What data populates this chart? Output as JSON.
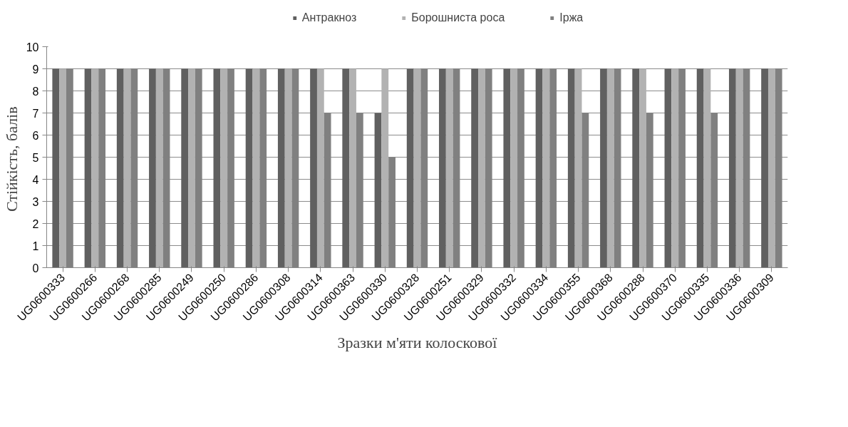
{
  "chart_data": {
    "type": "bar",
    "xlabel": "Зразки м'яти колоскової",
    "ylabel": "Стійкість,  балів",
    "categories": [
      "UG0600333",
      "UG0600266",
      "UG0600268",
      "UG0600285",
      "UG0600249",
      "UG0600250",
      "UG0600286",
      "UG0600308",
      "UG0600314",
      "UG0600363",
      "UG0600330",
      "UG0600328",
      "UG0600251",
      "UG0600329",
      "UG0600332",
      "UG0600334",
      "UG0600355",
      "UG0600368",
      "UG0600288",
      "UG0600370",
      "UG0600335",
      "UG0600336",
      "UG0600309"
    ],
    "series": [
      {
        "name": "Антракноз",
        "color": "#606060",
        "values": [
          9,
          9,
          9,
          9,
          9,
          9,
          9,
          9,
          9,
          9,
          7,
          9,
          9,
          9,
          9,
          9,
          9,
          9,
          9,
          9,
          9,
          9,
          9
        ]
      },
      {
        "name": "Борошниста роса",
        "color": "#b2b2b2",
        "values": [
          9,
          9,
          9,
          9,
          9,
          9,
          9,
          9,
          9,
          9,
          9,
          9,
          9,
          9,
          9,
          9,
          9,
          9,
          9,
          9,
          9,
          9,
          9
        ]
      },
      {
        "name": "Іржа",
        "color": "#808080",
        "values": [
          9,
          9,
          9,
          9,
          9,
          9,
          9,
          9,
          7,
          7,
          5,
          9,
          9,
          9,
          9,
          9,
          7,
          9,
          7,
          9,
          7,
          9,
          9
        ]
      }
    ],
    "ylim": [
      0,
      10
    ],
    "yticks": [
      0,
      1,
      2,
      3,
      4,
      5,
      6,
      7,
      8,
      9,
      10
    ],
    "grid": "y",
    "legend": "top"
  }
}
